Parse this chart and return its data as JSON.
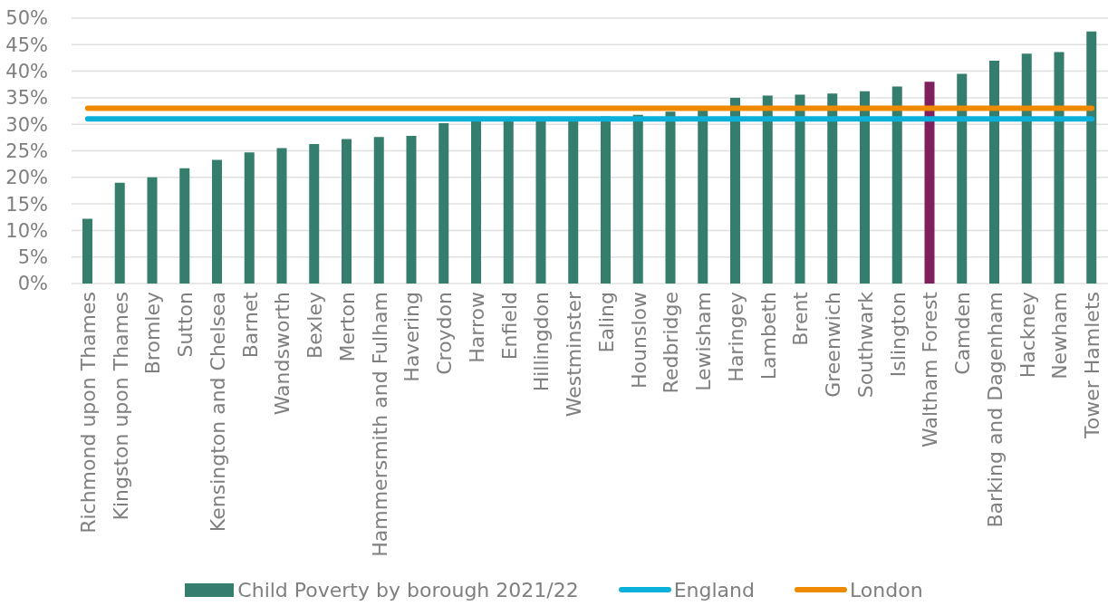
{
  "chart_data": {
    "type": "bar",
    "categories": [
      "Richmond upon Thames",
      "Kingston upon Thames",
      "Bromley",
      "Sutton",
      "Kensington and Chelsea",
      "Barnet",
      "Wandsworth",
      "Bexley",
      "Merton",
      "Hammersmith and Fulham",
      "Havering",
      "Croydon",
      "Harrow",
      "Enfield",
      "Hillingdon",
      "Westminster",
      "Ealing",
      "Hounslow",
      "Redbridge",
      "Lewisham",
      "Haringey",
      "Lambeth",
      "Brent",
      "Greenwich",
      "Southwark",
      "Islington",
      "Waltham Forest",
      "Camden",
      "Barking and Dagenham",
      "Hackney",
      "Newham",
      "Tower Hamlets"
    ],
    "series": [
      {
        "name": "Child Poverty by borough 2021/22",
        "color": "#357d6d",
        "colors": [
          "#357d6d",
          "#357d6d",
          "#357d6d",
          "#357d6d",
          "#357d6d",
          "#357d6d",
          "#357d6d",
          "#357d6d",
          "#357d6d",
          "#357d6d",
          "#357d6d",
          "#357d6d",
          "#357d6d",
          "#357d6d",
          "#357d6d",
          "#357d6d",
          "#357d6d",
          "#357d6d",
          "#357d6d",
          "#357d6d",
          "#357d6d",
          "#357d6d",
          "#357d6d",
          "#357d6d",
          "#357d6d",
          "#357d6d",
          "#7e1f5e",
          "#357d6d",
          "#357d6d",
          "#357d6d",
          "#357d6d",
          "#357d6d"
        ],
        "values": [
          12.2,
          19.0,
          20.0,
          21.7,
          23.3,
          24.7,
          25.5,
          26.3,
          27.2,
          27.6,
          27.8,
          30.2,
          30.7,
          30.8,
          30.9,
          31.0,
          31.5,
          31.8,
          32.4,
          32.6,
          35.0,
          35.4,
          35.6,
          35.8,
          36.2,
          37.1,
          38.0,
          39.5,
          42.0,
          43.3,
          43.6,
          47.5
        ]
      },
      {
        "name": "England",
        "type": "line",
        "color": "#0bb0da",
        "values": [
          31,
          31,
          31,
          31,
          31,
          31,
          31,
          31,
          31,
          31,
          31,
          31,
          31,
          31,
          31,
          31,
          31,
          31,
          31,
          31,
          31,
          31,
          31,
          31,
          31,
          31,
          31,
          31,
          31,
          31,
          31,
          31
        ]
      },
      {
        "name": "London",
        "type": "line",
        "color": "#ee8a00",
        "values": [
          33,
          33,
          33,
          33,
          33,
          33,
          33,
          33,
          33,
          33,
          33,
          33,
          33,
          33,
          33,
          33,
          33,
          33,
          33,
          33,
          33,
          33,
          33,
          33,
          33,
          33,
          33,
          33,
          33,
          33,
          33,
          33
        ]
      }
    ],
    "ylim": [
      0,
      50
    ],
    "yticks": [
      {
        "value": 0,
        "label": "0%"
      },
      {
        "value": 5,
        "label": "5%"
      },
      {
        "value": 10,
        "label": "10%"
      },
      {
        "value": 15,
        "label": "15%"
      },
      {
        "value": 20,
        "label": "20%"
      },
      {
        "value": 25,
        "label": "25%"
      },
      {
        "value": 30,
        "label": "30%"
      },
      {
        "value": 35,
        "label": "35%"
      },
      {
        "value": 40,
        "label": "40%"
      },
      {
        "value": 45,
        "label": "45%"
      },
      {
        "value": 50,
        "label": "50%"
      }
    ],
    "grid": "y",
    "legend": "bottom",
    "marker": "none"
  }
}
